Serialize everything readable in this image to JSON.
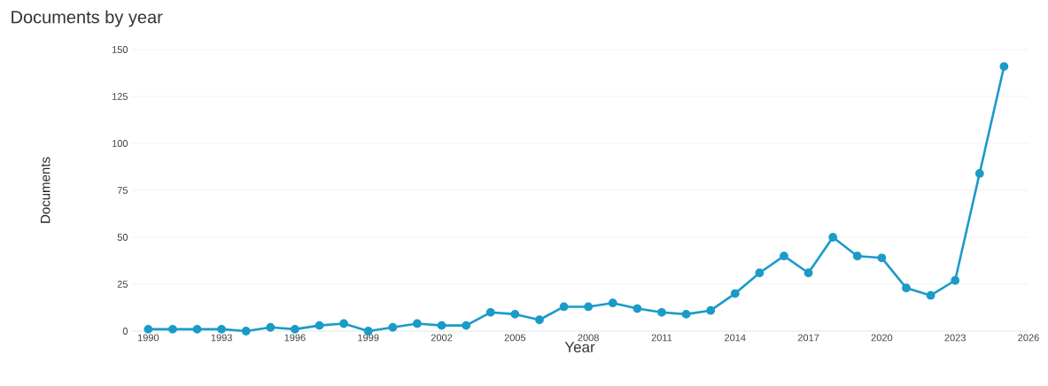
{
  "chart_data": {
    "type": "line",
    "title": "Documents by year",
    "xlabel": "Year",
    "ylabel": "Documents",
    "x": [
      1990,
      1991,
      1992,
      1993,
      1994,
      1995,
      1996,
      1997,
      1998,
      1999,
      2000,
      2001,
      2002,
      2003,
      2004,
      2005,
      2006,
      2007,
      2008,
      2009,
      2010,
      2011,
      2012,
      2013,
      2014,
      2015,
      2016,
      2017,
      2018,
      2019,
      2020,
      2021,
      2022,
      2023,
      2024,
      2025
    ],
    "series": [
      {
        "color": "#1a9bc8",
        "values": [
          1,
          1,
          1,
          1,
          0,
          2,
          1,
          3,
          4,
          0,
          2,
          4,
          3,
          3,
          10,
          9,
          6,
          13,
          13,
          15,
          12,
          10,
          9,
          11,
          20,
          31,
          40,
          31,
          50,
          40,
          39,
          23,
          19,
          27,
          84,
          141
        ]
      }
    ],
    "xlim": [
      1989.3,
      2026
    ],
    "xticks": [
      1990,
      1993,
      1996,
      1999,
      2002,
      2005,
      2008,
      2011,
      2014,
      2017,
      2020,
      2023,
      2026
    ],
    "ylim": [
      0,
      150
    ],
    "yticks": [
      0,
      25,
      50,
      75,
      100,
      125,
      150
    ],
    "grid": "y",
    "marker": "circle",
    "line_style": "solid"
  }
}
